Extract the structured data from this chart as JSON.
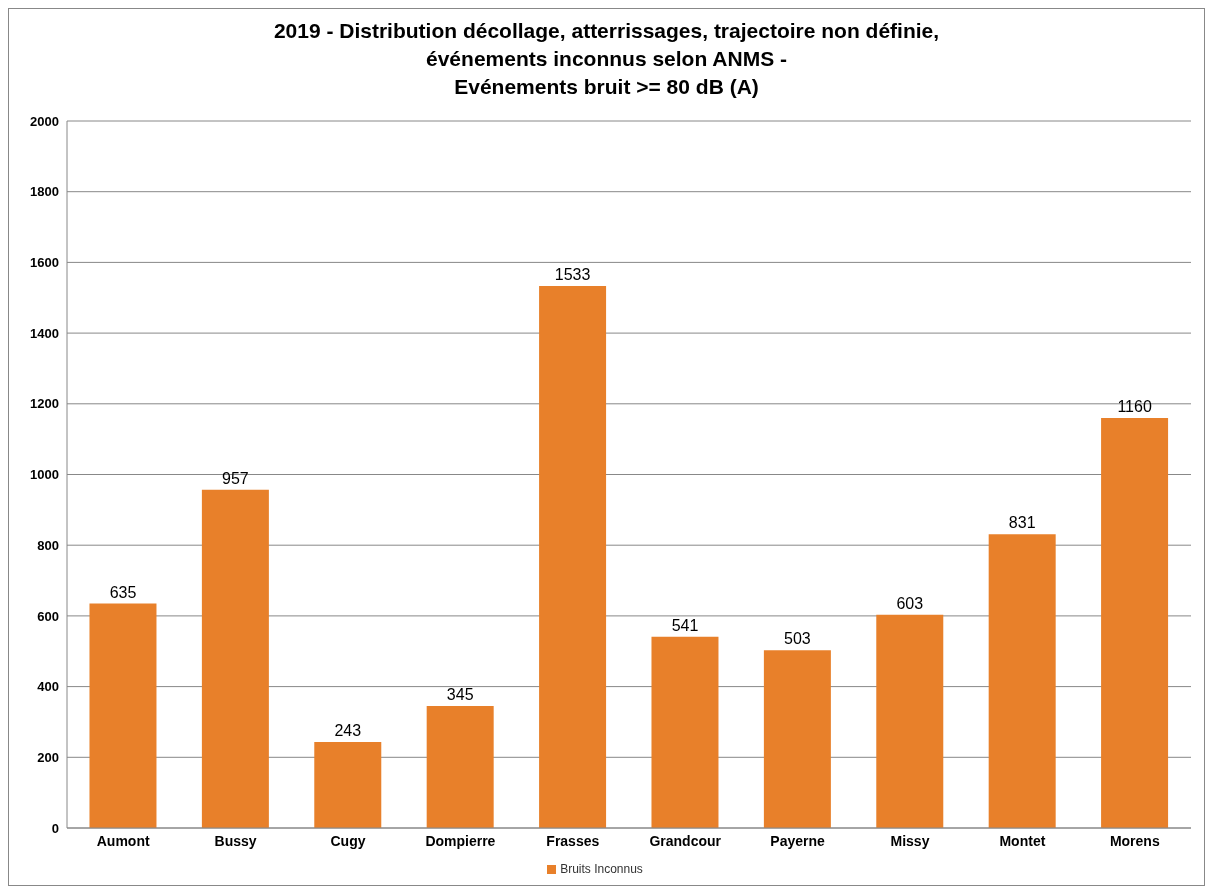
{
  "chart_data": {
    "type": "bar",
    "title": "2019 - Distribution décollage, atterrissages, trajectoire non définie,\névénements inconnus selon ANMS -\nEvénements bruit >= 80 dB (A)",
    "categories": [
      "Aumont",
      "Bussy",
      "Cugy",
      "Dompierre",
      "Frasses",
      "Grandcour",
      "Payerne",
      "Missy",
      "Montet",
      "Morens"
    ],
    "series": [
      {
        "name": "Bruits Inconnus",
        "color": "#e8802a",
        "values": [
          635,
          957,
          243,
          345,
          1533,
          541,
          503,
          603,
          831,
          1160
        ]
      }
    ],
    "ylim": [
      0,
      2000
    ],
    "yticks": [
      0,
      200,
      400,
      600,
      800,
      1000,
      1200,
      1400,
      1600,
      1800,
      2000
    ],
    "grid": "y",
    "legend": "bottom",
    "data_labels": true
  }
}
